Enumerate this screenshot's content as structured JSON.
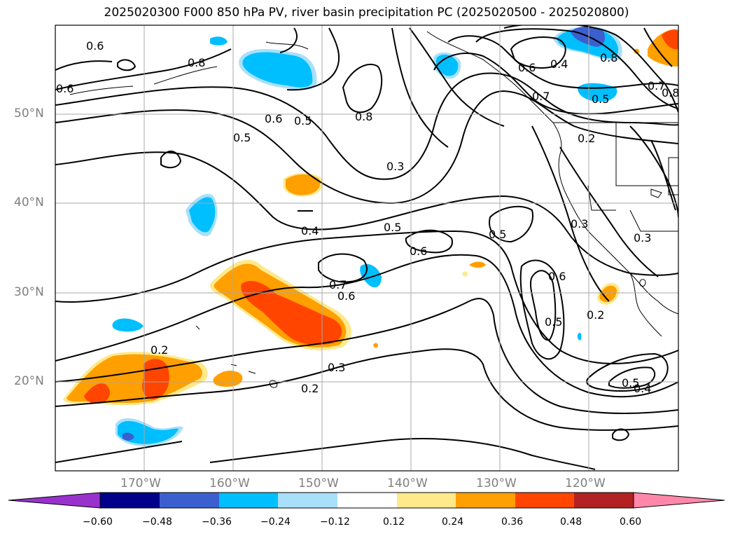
{
  "title": "2025020300 F000 850 hPa PV, river basin precipitation PC (2025020500 - 2025020800)",
  "map": {
    "lat_labels": [
      "50°N",
      "40°N",
      "30°N",
      "20°N"
    ],
    "lon_labels": [
      "170°W",
      "160°W",
      "150°W",
      "140°W",
      "130°W",
      "120°W"
    ],
    "contour_labels": [
      "0.6",
      "0.6",
      "0.8",
      "0.6",
      "0.5",
      "0.5",
      "0.8",
      "0.3",
      "0.4",
      "0.5",
      "0.6",
      "0.7",
      "0.6",
      "0.5",
      "0.2",
      "0.3",
      "0.2",
      "0.6",
      "0.5",
      "0.2",
      "0.5",
      "0.4",
      "0.8",
      "0.4",
      "0.7",
      "0.5",
      "0.2",
      "0.3",
      "0.3",
      "0.6",
      "0.7",
      "0.8"
    ],
    "shading_colors": {
      "neg_strong": "#3b5fcf",
      "neg_mid": "#00bfff",
      "neg_weak": "#a8e0fa",
      "pos_weak": "#ffe98a",
      "pos_mid": "#ff9f00",
      "pos_strong": "#ff4500"
    }
  },
  "colorbar": {
    "ticks": [
      "−0.60",
      "−0.48",
      "−0.36",
      "−0.24",
      "−0.12",
      "0.12",
      "0.24",
      "0.36",
      "0.48",
      "0.60"
    ],
    "colors": [
      "#9932cc",
      "#00008b",
      "#3b5fcf",
      "#00bfff",
      "#a8e0fa",
      "#ffffff",
      "#ffe98a",
      "#ff9f00",
      "#ff4500",
      "#b22222",
      "#ff88aa"
    ]
  }
}
